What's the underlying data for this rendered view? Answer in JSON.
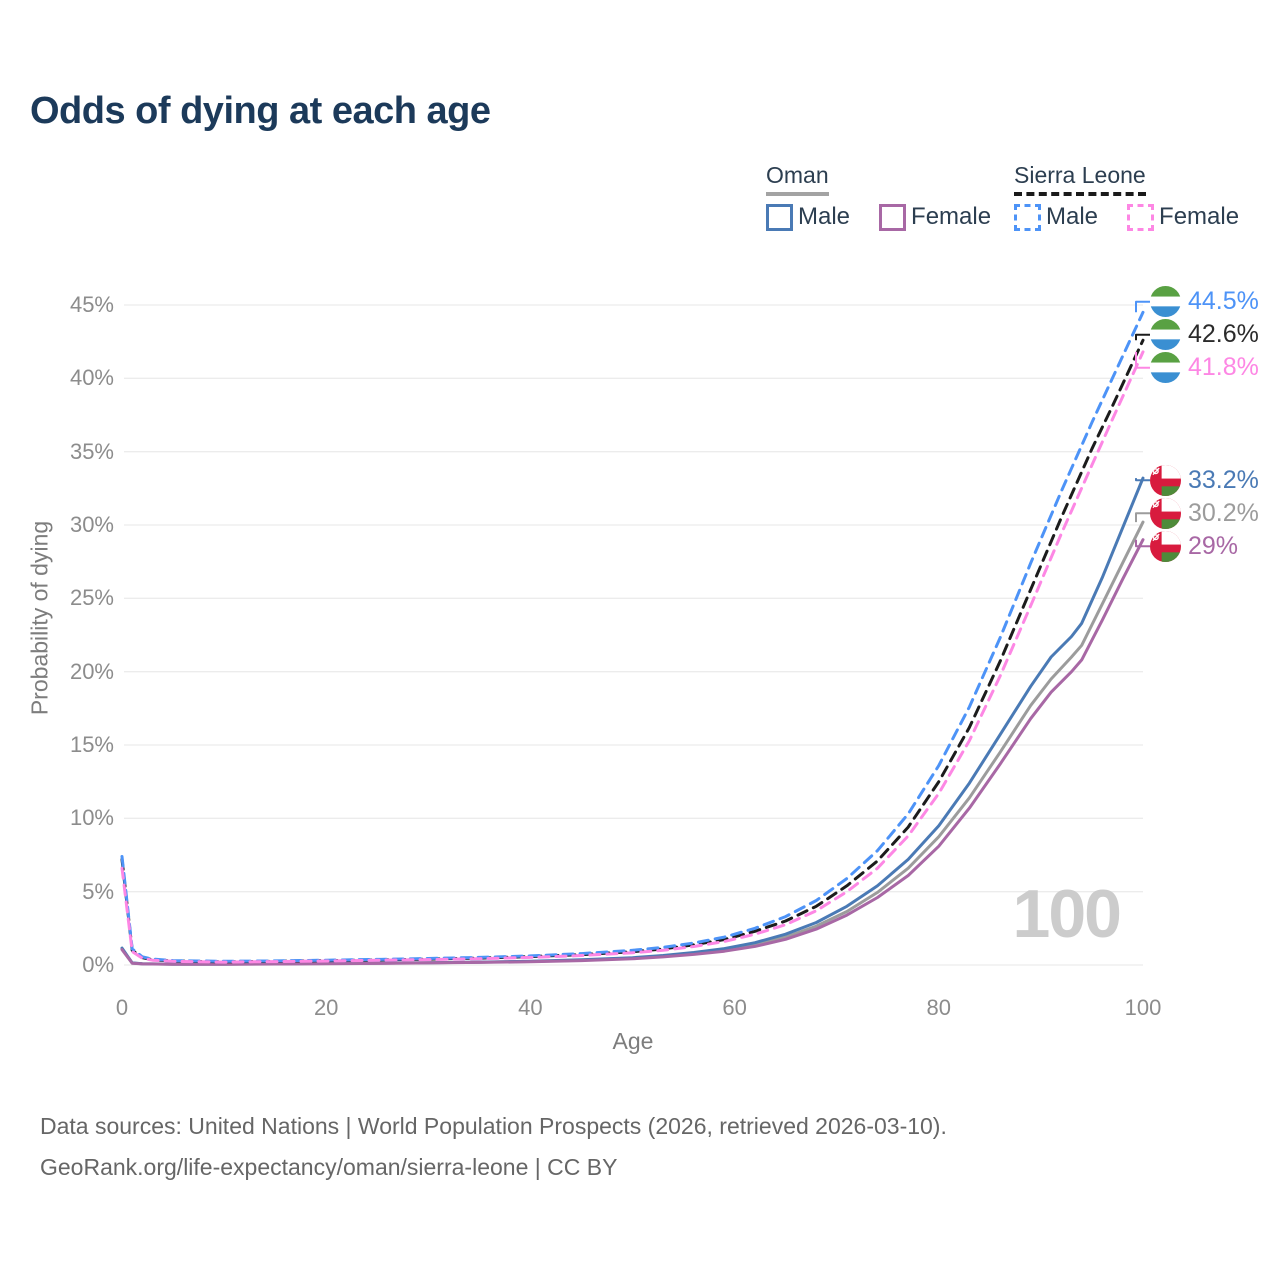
{
  "title": "Odds of dying at each age",
  "watermark": "100",
  "legend": {
    "groups": [
      {
        "name": "Oman",
        "line_style": "solid",
        "underline_color": "#a3a3a3",
        "items": [
          {
            "label": "Male",
            "color": "#4a7ab5"
          },
          {
            "label": "Female",
            "color": "#a868a5"
          }
        ]
      },
      {
        "name": "Sierra Leone",
        "line_style": "dashed",
        "underline_color": "#1a1a1a",
        "items": [
          {
            "label": "Male",
            "color": "#4d93f7"
          },
          {
            "label": "Female",
            "color": "#fd87e4"
          }
        ]
      }
    ]
  },
  "chart_data": {
    "type": "line",
    "title": "Odds of dying at each age",
    "xlabel": "Age",
    "ylabel": "Probability of dying",
    "xlim": [
      0,
      100
    ],
    "ylim": [
      0,
      45
    ],
    "x_ticks": [
      0,
      20,
      40,
      60,
      80,
      100
    ],
    "y_ticks": [
      "0%",
      "5%",
      "10%",
      "15%",
      "20%",
      "25%",
      "30%",
      "35%",
      "40%",
      "45%"
    ],
    "grid": "horizontal",
    "legend_position": "top-right",
    "series": [
      {
        "name": "Oman",
        "country": "Oman",
        "color": "#9c9c9c",
        "dash": false,
        "end_label": "30.2%",
        "points": [
          [
            0,
            1.1
          ],
          [
            1,
            0.13
          ],
          [
            2,
            0.08
          ],
          [
            5,
            0.055
          ],
          [
            10,
            0.055
          ],
          [
            15,
            0.075
          ],
          [
            20,
            0.1
          ],
          [
            25,
            0.12
          ],
          [
            30,
            0.15
          ],
          [
            35,
            0.19
          ],
          [
            40,
            0.24
          ],
          [
            45,
            0.33
          ],
          [
            50,
            0.46
          ],
          [
            53,
            0.6
          ],
          [
            56,
            0.78
          ],
          [
            59,
            1.02
          ],
          [
            62,
            1.38
          ],
          [
            65,
            1.9
          ],
          [
            68,
            2.65
          ],
          [
            71,
            3.65
          ],
          [
            74,
            4.95
          ],
          [
            77,
            6.6
          ],
          [
            80,
            8.75
          ],
          [
            83,
            11.4
          ],
          [
            86,
            14.5
          ],
          [
            89,
            17.7
          ],
          [
            91,
            19.5
          ],
          [
            93,
            21.0
          ],
          [
            94,
            21.8
          ],
          [
            96,
            24.6
          ],
          [
            98,
            27.4
          ],
          [
            100,
            30.2
          ]
        ]
      },
      {
        "name": "Oman Male",
        "country": "Oman",
        "color": "#4a7ab5",
        "dash": false,
        "end_label": "33.2%",
        "points": [
          [
            0,
            1.15
          ],
          [
            1,
            0.14
          ],
          [
            2,
            0.09
          ],
          [
            5,
            0.06
          ],
          [
            10,
            0.06
          ],
          [
            15,
            0.08
          ],
          [
            20,
            0.11
          ],
          [
            25,
            0.13
          ],
          [
            30,
            0.16
          ],
          [
            35,
            0.2
          ],
          [
            40,
            0.26
          ],
          [
            45,
            0.36
          ],
          [
            50,
            0.5
          ],
          [
            53,
            0.65
          ],
          [
            56,
            0.85
          ],
          [
            59,
            1.12
          ],
          [
            62,
            1.52
          ],
          [
            65,
            2.1
          ],
          [
            68,
            2.9
          ],
          [
            71,
            4.0
          ],
          [
            74,
            5.4
          ],
          [
            77,
            7.2
          ],
          [
            80,
            9.5
          ],
          [
            83,
            12.4
          ],
          [
            86,
            15.7
          ],
          [
            89,
            19.0
          ],
          [
            91,
            21.0
          ],
          [
            93,
            22.4
          ],
          [
            94,
            23.3
          ],
          [
            96,
            26.4
          ],
          [
            98,
            29.8
          ],
          [
            100,
            33.2
          ]
        ]
      },
      {
        "name": "Oman Female",
        "country": "Oman",
        "color": "#a868a5",
        "dash": false,
        "end_label": "29%",
        "points": [
          [
            0,
            1.05
          ],
          [
            1,
            0.12
          ],
          [
            2,
            0.075
          ],
          [
            5,
            0.05
          ],
          [
            10,
            0.05
          ],
          [
            15,
            0.07
          ],
          [
            20,
            0.09
          ],
          [
            25,
            0.11
          ],
          [
            30,
            0.14
          ],
          [
            35,
            0.18
          ],
          [
            40,
            0.22
          ],
          [
            45,
            0.3
          ],
          [
            50,
            0.42
          ],
          [
            53,
            0.55
          ],
          [
            56,
            0.72
          ],
          [
            59,
            0.94
          ],
          [
            62,
            1.27
          ],
          [
            65,
            1.75
          ],
          [
            68,
            2.45
          ],
          [
            71,
            3.4
          ],
          [
            74,
            4.6
          ],
          [
            77,
            6.1
          ],
          [
            80,
            8.1
          ],
          [
            83,
            10.7
          ],
          [
            86,
            13.7
          ],
          [
            89,
            16.8
          ],
          [
            91,
            18.6
          ],
          [
            93,
            20.0
          ],
          [
            94,
            20.8
          ],
          [
            96,
            23.5
          ],
          [
            98,
            26.3
          ],
          [
            100,
            29.0
          ]
        ]
      },
      {
        "name": "Sierra Leone",
        "country": "Sierra Leone",
        "color": "#1c1c1c",
        "dash": true,
        "end_label": "42.6%",
        "points": [
          [
            0,
            7.2
          ],
          [
            1,
            1.0
          ],
          [
            2,
            0.5
          ],
          [
            3,
            0.36
          ],
          [
            5,
            0.27
          ],
          [
            10,
            0.22
          ],
          [
            15,
            0.25
          ],
          [
            20,
            0.3
          ],
          [
            25,
            0.35
          ],
          [
            30,
            0.4
          ],
          [
            35,
            0.47
          ],
          [
            40,
            0.57
          ],
          [
            45,
            0.71
          ],
          [
            50,
            0.91
          ],
          [
            53,
            1.1
          ],
          [
            56,
            1.38
          ],
          [
            59,
            1.74
          ],
          [
            62,
            2.3
          ],
          [
            65,
            3.0
          ],
          [
            68,
            4.0
          ],
          [
            71,
            5.4
          ],
          [
            74,
            7.1
          ],
          [
            77,
            9.4
          ],
          [
            80,
            12.5
          ],
          [
            83,
            16.2
          ],
          [
            86,
            20.7
          ],
          [
            89,
            25.6
          ],
          [
            92,
            30.5
          ],
          [
            95,
            35.2
          ],
          [
            97,
            38.1
          ],
          [
            100,
            42.6
          ]
        ]
      },
      {
        "name": "Sierra Leone Male",
        "country": "Sierra Leone",
        "color": "#4d93f7",
        "dash": true,
        "end_label": "44.5%",
        "points": [
          [
            0,
            7.4
          ],
          [
            1,
            1.1
          ],
          [
            2,
            0.55
          ],
          [
            3,
            0.4
          ],
          [
            5,
            0.3
          ],
          [
            10,
            0.25
          ],
          [
            15,
            0.28
          ],
          [
            20,
            0.33
          ],
          [
            25,
            0.38
          ],
          [
            30,
            0.44
          ],
          [
            35,
            0.52
          ],
          [
            40,
            0.62
          ],
          [
            45,
            0.78
          ],
          [
            50,
            1.0
          ],
          [
            53,
            1.2
          ],
          [
            56,
            1.5
          ],
          [
            59,
            1.9
          ],
          [
            62,
            2.5
          ],
          [
            65,
            3.3
          ],
          [
            68,
            4.4
          ],
          [
            71,
            5.9
          ],
          [
            74,
            7.8
          ],
          [
            77,
            10.3
          ],
          [
            80,
            13.6
          ],
          [
            83,
            17.6
          ],
          [
            86,
            22.3
          ],
          [
            89,
            27.4
          ],
          [
            92,
            32.3
          ],
          [
            95,
            37.0
          ],
          [
            97,
            40.0
          ],
          [
            100,
            44.5
          ]
        ]
      },
      {
        "name": "Sierra Leone Female",
        "country": "Sierra Leone",
        "color": "#fd87e4",
        "dash": true,
        "end_label": "41.8%",
        "points": [
          [
            0,
            6.6
          ],
          [
            1,
            0.92
          ],
          [
            2,
            0.46
          ],
          [
            3,
            0.33
          ],
          [
            5,
            0.25
          ],
          [
            10,
            0.2
          ],
          [
            15,
            0.23
          ],
          [
            20,
            0.27
          ],
          [
            25,
            0.32
          ],
          [
            30,
            0.37
          ],
          [
            35,
            0.43
          ],
          [
            40,
            0.52
          ],
          [
            45,
            0.65
          ],
          [
            50,
            0.83
          ],
          [
            53,
            1.0
          ],
          [
            56,
            1.26
          ],
          [
            59,
            1.6
          ],
          [
            62,
            2.1
          ],
          [
            65,
            2.75
          ],
          [
            68,
            3.7
          ],
          [
            71,
            5.0
          ],
          [
            74,
            6.6
          ],
          [
            77,
            8.8
          ],
          [
            80,
            11.7
          ],
          [
            83,
            15.3
          ],
          [
            86,
            19.7
          ],
          [
            89,
            24.5
          ],
          [
            92,
            29.4
          ],
          [
            95,
            34.1
          ],
          [
            97,
            37.2
          ],
          [
            100,
            41.8
          ]
        ]
      }
    ],
    "flags": {
      "Sierra Leone": {
        "bands": "horizontal",
        "colors": [
          "#59a143",
          "#ffffff",
          "#3a8fd2"
        ]
      },
      "Oman": {
        "colors": {
          "red": "#d81b3e",
          "white": "#ffffff",
          "green": "#4e8b3a"
        }
      }
    }
  },
  "footer": {
    "line1": "Data sources: United Nations | World Population Prospects (2026, retrieved 2026-03-10).",
    "line2": "GeoRank.org/life-expectancy/oman/sierra-leone | CC BY"
  }
}
